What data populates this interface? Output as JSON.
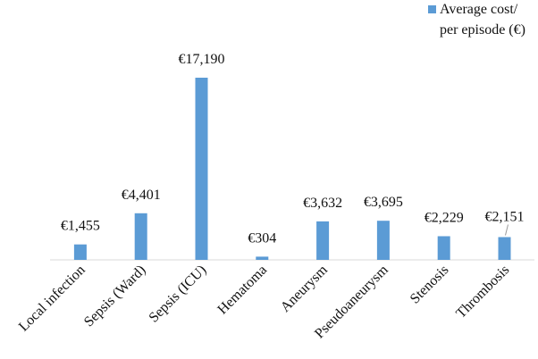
{
  "chart_data": {
    "type": "bar",
    "categories": [
      "Local infection",
      "Sepsis (Ward)",
      "Sepsis (ICU)",
      "Hematoma",
      "Aneurysm",
      "Pseudoaneurysm",
      "Stenosis",
      "Thrombosis"
    ],
    "series": [
      {
        "name": "Average cost/ per episode (€)",
        "values": [
          1455,
          4401,
          17190,
          304,
          3632,
          3695,
          2229,
          2151
        ],
        "data_labels": [
          "€1,455",
          "€4,401",
          "€17,190",
          "€304",
          "€3,632",
          "€3,695",
          "€2,229",
          "€2,151"
        ],
        "color": "#5B9BD5"
      }
    ],
    "ylim": [
      0,
      17190
    ],
    "grid": false,
    "legend_position": "top-right",
    "legend_lines": [
      "Average cost/",
      "per episode (€)"
    ]
  }
}
